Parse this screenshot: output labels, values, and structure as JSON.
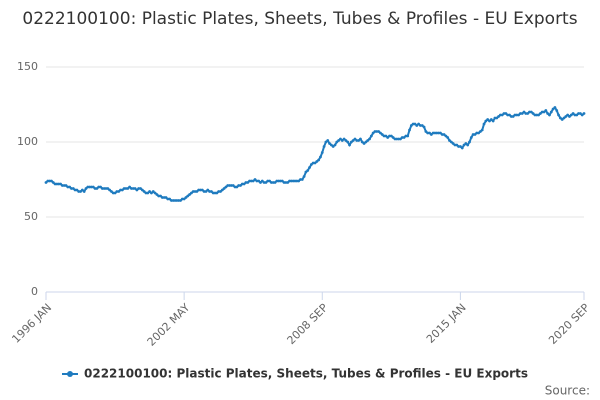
{
  "chart_data": {
    "type": "line",
    "title": "0222100100: Plastic Plates, Sheets, Tubes & Profiles - EU Exports",
    "source": "Source:",
    "categories": [
      "1996 JAN",
      null,
      null,
      null,
      null,
      null,
      null,
      null,
      null,
      null,
      null,
      null,
      null,
      null,
      null,
      null,
      null,
      null,
      null,
      null,
      null,
      null,
      null,
      null,
      null,
      null,
      null,
      null,
      null,
      null,
      null,
      null,
      null,
      null,
      null,
      null,
      null,
      null,
      null,
      null,
      null,
      null,
      null,
      null,
      null,
      null,
      null,
      null,
      null,
      null,
      null,
      null,
      null,
      null,
      null,
      null,
      null,
      null,
      null,
      null,
      null,
      null,
      null,
      null,
      null,
      null,
      null,
      null,
      null,
      null,
      null,
      null,
      null,
      null,
      null,
      null,
      "2002 MAY",
      null,
      null,
      null,
      null,
      null,
      null,
      null,
      null,
      null,
      null,
      null,
      null,
      null,
      null,
      null,
      null,
      null,
      null,
      null,
      null,
      null,
      null,
      null,
      null,
      null,
      null,
      null,
      null,
      null,
      null,
      null,
      null,
      null,
      null,
      null,
      null,
      null,
      null,
      null,
      null,
      null,
      null,
      null,
      null,
      null,
      null,
      null,
      null,
      null,
      null,
      null,
      null,
      null,
      null,
      null,
      null,
      null,
      null,
      null,
      null,
      null,
      null,
      null,
      null,
      null,
      null,
      null,
      null,
      null,
      null,
      null,
      null,
      null,
      null,
      null,
      "2008 SEP",
      null,
      null,
      null,
      null,
      null,
      null,
      null,
      null,
      null,
      null,
      null,
      null,
      null,
      null,
      null,
      null,
      null,
      null,
      null,
      null,
      null,
      null,
      null,
      null,
      null,
      null,
      null,
      null,
      null,
      null,
      null,
      null,
      null,
      null,
      null,
      null,
      null,
      null,
      null,
      null,
      null,
      null,
      null,
      null,
      null,
      null,
      null,
      null,
      null,
      null,
      null,
      null,
      null,
      null,
      null,
      null,
      null,
      null,
      null,
      null,
      null,
      null,
      null,
      null,
      null,
      null,
      null,
      null,
      null,
      null,
      null,
      null,
      null,
      null,
      null,
      "2015 JAN",
      null,
      null,
      null,
      null,
      null,
      null,
      null,
      null,
      null,
      null,
      null,
      null,
      null,
      null,
      null,
      null,
      null,
      null,
      null,
      null,
      null,
      null,
      null,
      null,
      null,
      null,
      null,
      null,
      null,
      null,
      null,
      null,
      null,
      null,
      null,
      null,
      null,
      null,
      null,
      null,
      null,
      null,
      null,
      null,
      null,
      null,
      null,
      null,
      null,
      null,
      null,
      null,
      null,
      null,
      null,
      null,
      null,
      null,
      null,
      null,
      null,
      null,
      null,
      null,
      null,
      null,
      null,
      "2020 SEP"
    ],
    "series": [
      {
        "name": "0222100100: Plastic Plates, Sheets, Tubes & Profiles - EU Exports",
        "color": "#1f7bbf",
        "values": [
          73,
          74,
          74,
          74,
          73,
          72,
          72,
          72,
          72,
          71,
          71,
          71,
          70,
          70,
          69,
          69,
          68,
          68,
          67,
          67,
          68,
          67,
          69,
          70,
          70,
          70,
          70,
          69,
          69,
          70,
          70,
          69,
          69,
          69,
          69,
          68,
          67,
          66,
          66,
          67,
          67,
          68,
          68,
          69,
          69,
          69,
          70,
          69,
          69,
          69,
          68,
          69,
          69,
          68,
          67,
          66,
          66,
          67,
          66,
          67,
          66,
          65,
          64,
          64,
          63,
          63,
          63,
          62,
          62,
          61,
          61,
          61,
          61,
          61,
          61,
          62,
          62,
          63,
          64,
          65,
          66,
          67,
          67,
          67,
          68,
          68,
          68,
          67,
          67,
          68,
          67,
          67,
          66,
          66,
          66,
          67,
          67,
          68,
          69,
          70,
          71,
          71,
          71,
          71,
          70,
          70,
          71,
          71,
          72,
          72,
          73,
          73,
          74,
          74,
          74,
          75,
          74,
          74,
          73,
          74,
          73,
          73,
          74,
          74,
          73,
          73,
          73,
          74,
          74,
          74,
          74,
          73,
          73,
          73,
          74,
          74,
          74,
          74,
          74,
          74,
          75,
          75,
          77,
          80,
          81,
          83,
          85,
          86,
          86,
          87,
          88,
          90,
          93,
          97,
          100,
          101,
          99,
          98,
          97,
          98,
          100,
          101,
          102,
          101,
          102,
          101,
          100,
          98,
          100,
          101,
          102,
          101,
          101,
          102,
          100,
          99,
          100,
          101,
          102,
          104,
          106,
          107,
          107,
          107,
          106,
          105,
          104,
          104,
          103,
          104,
          104,
          103,
          102,
          102,
          102,
          102,
          103,
          103,
          104,
          104,
          108,
          111,
          112,
          112,
          111,
          112,
          111,
          111,
          110,
          107,
          106,
          106,
          105,
          106,
          106,
          106,
          106,
          106,
          105,
          105,
          104,
          103,
          101,
          100,
          99,
          98,
          98,
          97,
          97,
          96,
          98,
          99,
          98,
          100,
          103,
          105,
          105,
          106,
          106,
          107,
          108,
          112,
          114,
          115,
          114,
          115,
          114,
          116,
          116,
          117,
          118,
          118,
          119,
          119,
          118,
          118,
          117,
          117,
          118,
          118,
          118,
          119,
          119,
          120,
          119,
          119,
          120,
          120,
          119,
          118,
          118,
          118,
          119,
          120,
          120,
          121,
          119,
          118,
          120,
          122,
          123,
          121,
          118,
          116,
          115,
          116,
          117,
          118,
          117,
          118,
          119,
          118,
          118,
          119,
          119,
          118,
          119
        ]
      }
    ],
    "ylim": [
      0,
      150
    ],
    "yticks": [
      0,
      50,
      100,
      150
    ],
    "grid": true
  }
}
